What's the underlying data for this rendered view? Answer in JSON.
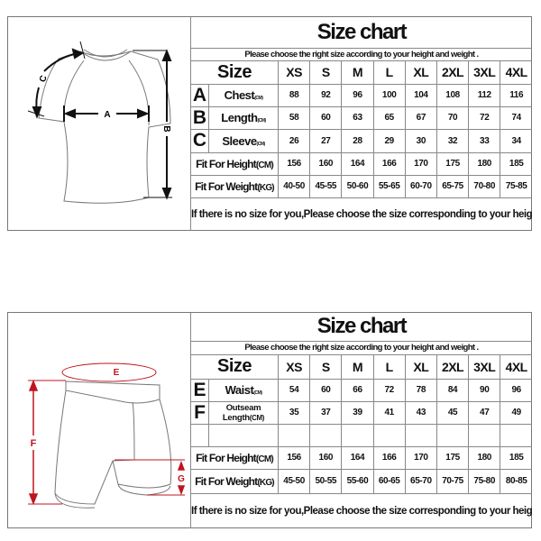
{
  "shirt_chart": {
    "title": "Size chart",
    "subtitle": "Please choose the right size according to your height and weight .",
    "size_label": "Size",
    "sizes": [
      "XS",
      "S",
      "M",
      "L",
      "XL",
      "2XL",
      "3XL",
      "4XL"
    ],
    "rows": [
      {
        "letter": "A",
        "label": "Chest",
        "unit": "(CM)",
        "values": [
          "88",
          "92",
          "96",
          "100",
          "104",
          "108",
          "112",
          "116"
        ]
      },
      {
        "letter": "B",
        "label": "Length",
        "unit": "(CM)",
        "values": [
          "58",
          "60",
          "63",
          "65",
          "67",
          "70",
          "72",
          "74"
        ]
      },
      {
        "letter": "C",
        "label": "Sleeve",
        "unit": "(CM)",
        "values": [
          "26",
          "27",
          "28",
          "29",
          "30",
          "32",
          "33",
          "34"
        ]
      }
    ],
    "height_row": {
      "label": "Fit For Height",
      "unit": "(CM)",
      "values": [
        "156",
        "160",
        "164",
        "166",
        "170",
        "175",
        "180",
        "185"
      ]
    },
    "weight_row": {
      "label": "Fit For Weight",
      "unit": "(KG)",
      "values": [
        "40-50",
        "45-55",
        "50-60",
        "55-65",
        "60-70",
        "65-75",
        "70-80",
        "75-85"
      ]
    },
    "note": "If there is no size for you,Please choose the size corresponding to your height when placing an order,And note your weight.",
    "diagram_labels": {
      "a": "A",
      "b": "B",
      "c": "C"
    }
  },
  "shorts_chart": {
    "title": "Size chart",
    "subtitle": "Please choose the right size according to your height and weight .",
    "size_label": "Size",
    "sizes": [
      "XS",
      "S",
      "M",
      "L",
      "XL",
      "2XL",
      "3XL",
      "4XL"
    ],
    "rows": [
      {
        "letter": "E",
        "label": "Waist",
        "unit": "(CM)",
        "values": [
          "54",
          "60",
          "66",
          "72",
          "78",
          "84",
          "90",
          "96"
        ]
      },
      {
        "letter": "F",
        "label": "Outseam Length",
        "unit": "(CM)",
        "values": [
          "35",
          "37",
          "39",
          "41",
          "43",
          "45",
          "47",
          "49"
        ]
      },
      {
        "letter": "",
        "label": "",
        "unit": "",
        "values": [
          "",
          "",
          "",
          "",
          "",
          "",
          "",
          ""
        ]
      }
    ],
    "height_row": {
      "label": "Fit For Height",
      "unit": "(CM)",
      "values": [
        "156",
        "160",
        "164",
        "166",
        "170",
        "175",
        "180",
        "185"
      ]
    },
    "weight_row": {
      "label": "Fit For Weight",
      "unit": "(KG)",
      "values": [
        "45-50",
        "50-55",
        "55-60",
        "60-65",
        "65-70",
        "70-75",
        "75-80",
        "80-85"
      ]
    },
    "note": "If there is no size for you,Please choose the size corresponding to your height when placing an order,And note your weight.",
    "diagram_labels": {
      "e": "E",
      "f": "F",
      "g": "G"
    },
    "diagram_color": "#c0141e"
  }
}
